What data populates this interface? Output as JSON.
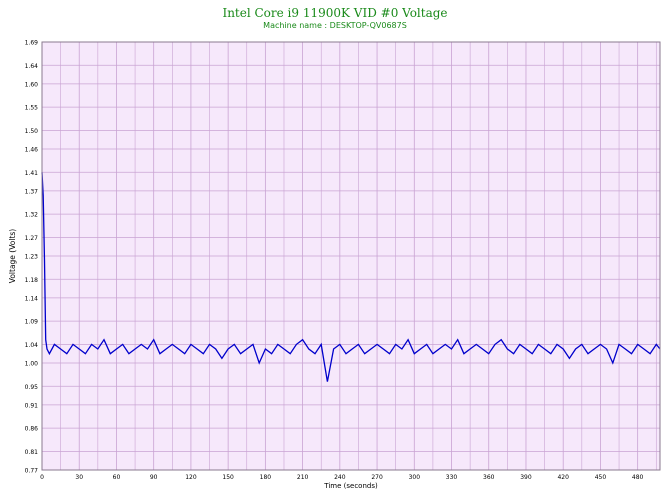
{
  "colors": {
    "title": "#1a8a1a",
    "subtitle": "#1a8a1a",
    "plot_bg": "#f6e8fb",
    "grid": "#c9a3d3",
    "line": "#0000cc"
  },
  "chart_data": {
    "type": "line",
    "title": "Intel Core i9 11900K VID #0 Voltage",
    "subtitle": "Machine name : DESKTOP-QV0687S",
    "xlabel": "Time (seconds)",
    "ylabel": "Voltage (Volts)",
    "xlim": [
      0,
      498
    ],
    "ylim": [
      0.77,
      1.69
    ],
    "xticks": [
      "0",
      "30",
      "60",
      "90",
      "120",
      "150",
      "180",
      "210",
      "240",
      "270",
      "300",
      "330",
      "360",
      "390",
      "420",
      "450",
      "480"
    ],
    "yticks": [
      "0.77",
      "0.81",
      "0.86",
      "0.91",
      "0.95",
      "1.00",
      "1.04",
      "1.09",
      "1.14",
      "1.18",
      "1.23",
      "1.27",
      "1.32",
      "1.37",
      "1.41",
      "1.46",
      "1.50",
      "1.55",
      "1.60",
      "1.64",
      "1.69"
    ],
    "grid": true,
    "series": [
      {
        "x": [
          0,
          1,
          2,
          3,
          4,
          6,
          10,
          15,
          20,
          25,
          30,
          35,
          40,
          45,
          50,
          55,
          60,
          65,
          70,
          75,
          80,
          85,
          90,
          95,
          100,
          105,
          110,
          115,
          120,
          125,
          130,
          135,
          140,
          145,
          150,
          155,
          160,
          165,
          170,
          175,
          180,
          185,
          190,
          195,
          200,
          205,
          210,
          215,
          220,
          225,
          230,
          235,
          240,
          245,
          250,
          255,
          260,
          265,
          270,
          275,
          280,
          285,
          290,
          295,
          300,
          305,
          310,
          315,
          320,
          325,
          330,
          335,
          340,
          345,
          350,
          355,
          360,
          365,
          370,
          375,
          380,
          385,
          390,
          395,
          400,
          405,
          410,
          415,
          420,
          425,
          430,
          435,
          440,
          445,
          450,
          455,
          460,
          465,
          470,
          475,
          480,
          485,
          490,
          495,
          498
        ],
        "y": [
          1.41,
          1.36,
          1.22,
          1.05,
          1.03,
          1.02,
          1.04,
          1.03,
          1.02,
          1.04,
          1.03,
          1.02,
          1.04,
          1.03,
          1.05,
          1.02,
          1.03,
          1.04,
          1.02,
          1.03,
          1.04,
          1.03,
          1.05,
          1.02,
          1.03,
          1.04,
          1.03,
          1.02,
          1.04,
          1.03,
          1.02,
          1.04,
          1.03,
          1.01,
          1.03,
          1.04,
          1.02,
          1.03,
          1.04,
          1.0,
          1.03,
          1.02,
          1.04,
          1.03,
          1.02,
          1.04,
          1.05,
          1.03,
          1.02,
          1.04,
          0.96,
          1.03,
          1.04,
          1.02,
          1.03,
          1.04,
          1.02,
          1.03,
          1.04,
          1.03,
          1.02,
          1.04,
          1.03,
          1.05,
          1.02,
          1.03,
          1.04,
          1.02,
          1.03,
          1.04,
          1.03,
          1.05,
          1.02,
          1.03,
          1.04,
          1.03,
          1.02,
          1.04,
          1.05,
          1.03,
          1.02,
          1.04,
          1.03,
          1.02,
          1.04,
          1.03,
          1.02,
          1.04,
          1.03,
          1.01,
          1.03,
          1.04,
          1.02,
          1.03,
          1.04,
          1.03,
          1.0,
          1.04,
          1.03,
          1.02,
          1.04,
          1.03,
          1.02,
          1.04,
          1.03
        ]
      }
    ]
  }
}
